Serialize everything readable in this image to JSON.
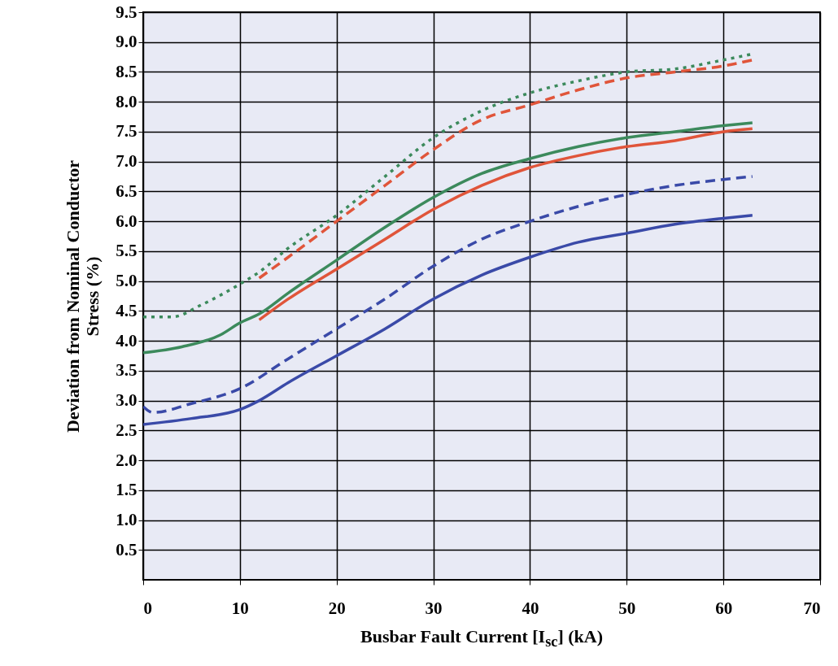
{
  "chart_data": {
    "type": "line",
    "xlabel": "Busbar Fault Current [I$_{sc}$] (kA)",
    "ylabel": "Deviation from Nominal Conductor Stress (%)",
    "xlim": [
      0,
      70
    ],
    "ylim": [
      0,
      9.5
    ],
    "xticks": [
      0,
      10,
      20,
      30,
      40,
      50,
      60,
      70
    ],
    "yticks": [
      {
        "value": 0.5,
        "label": "0.5"
      },
      {
        "value": 1,
        "label": "1.0"
      },
      {
        "value": 1.5,
        "label": "1.5"
      },
      {
        "value": 2,
        "label": "2.0"
      },
      {
        "value": 2.5,
        "label": "2.5"
      },
      {
        "value": 3,
        "label": "3.0"
      },
      {
        "value": 3.5,
        "label": "3.5"
      },
      {
        "value": 4,
        "label": "4.0"
      },
      {
        "value": 4.5,
        "label": "4.5"
      },
      {
        "value": 5,
        "label": "5.0"
      },
      {
        "value": 5.5,
        "label": "5.5"
      },
      {
        "value": 6,
        "label": "6.0"
      },
      {
        "value": 6.5,
        "label": "6.5"
      },
      {
        "value": 7,
        "label": "7.0"
      },
      {
        "value": 7.5,
        "label": "7.5"
      },
      {
        "value": 8,
        "label": "8.0"
      },
      {
        "value": 8.5,
        "label": "8.5"
      },
      {
        "value": 9,
        "label": "9.0"
      },
      {
        "value": 9.5,
        "label": "9.5"
      }
    ],
    "grid": true,
    "series": [
      {
        "color": "#3a4aa8",
        "line_style": "solid",
        "x": [
          0,
          5,
          10,
          12,
          15,
          20,
          25,
          30,
          35,
          40,
          45,
          50,
          55,
          60,
          63
        ],
        "values": [
          2.6,
          2.7,
          2.85,
          3.0,
          3.3,
          3.75,
          4.2,
          4.7,
          5.1,
          5.4,
          5.65,
          5.8,
          5.95,
          6.05,
          6.1
        ]
      },
      {
        "color": "#3a4aa8",
        "line_style": "dashed",
        "x": [
          0,
          1,
          5,
          10,
          15,
          20,
          25,
          30,
          35,
          40,
          45,
          50,
          55,
          60,
          63
        ],
        "values": [
          2.9,
          2.8,
          2.95,
          3.2,
          3.7,
          4.2,
          4.7,
          5.25,
          5.7,
          6.0,
          6.25,
          6.45,
          6.6,
          6.7,
          6.75
        ]
      },
      {
        "color": "#3c8a5c",
        "line_style": "solid",
        "x": [
          0,
          4,
          8,
          10,
          12,
          15,
          20,
          25,
          30,
          35,
          40,
          45,
          50,
          55,
          60,
          63
        ],
        "values": [
          3.8,
          3.9,
          4.1,
          4.3,
          4.45,
          4.8,
          5.35,
          5.9,
          6.4,
          6.8,
          7.05,
          7.25,
          7.4,
          7.5,
          7.6,
          7.65
        ]
      },
      {
        "color": "#e0553a",
        "line_style": "solid",
        "x": [
          12,
          15,
          20,
          25,
          30,
          35,
          40,
          45,
          50,
          55,
          60,
          63
        ],
        "values": [
          4.35,
          4.7,
          5.2,
          5.7,
          6.2,
          6.6,
          6.9,
          7.1,
          7.25,
          7.35,
          7.5,
          7.55
        ]
      },
      {
        "color": "#3c8a5c",
        "line_style": "dotted",
        "x": [
          0,
          3,
          6,
          10,
          12,
          15,
          20,
          25,
          30,
          35,
          40,
          45,
          50,
          55,
          60,
          63
        ],
        "values": [
          4.4,
          4.4,
          4.6,
          4.95,
          5.15,
          5.55,
          6.1,
          6.75,
          7.4,
          7.85,
          8.15,
          8.35,
          8.5,
          8.55,
          8.7,
          8.8
        ]
      },
      {
        "color": "#e0553a",
        "line_style": "dashed",
        "x": [
          12,
          15,
          20,
          25,
          30,
          35,
          40,
          45,
          50,
          55,
          60,
          63
        ],
        "values": [
          5.05,
          5.4,
          6.0,
          6.6,
          7.2,
          7.7,
          7.95,
          8.2,
          8.4,
          8.5,
          8.6,
          8.7
        ]
      }
    ]
  }
}
